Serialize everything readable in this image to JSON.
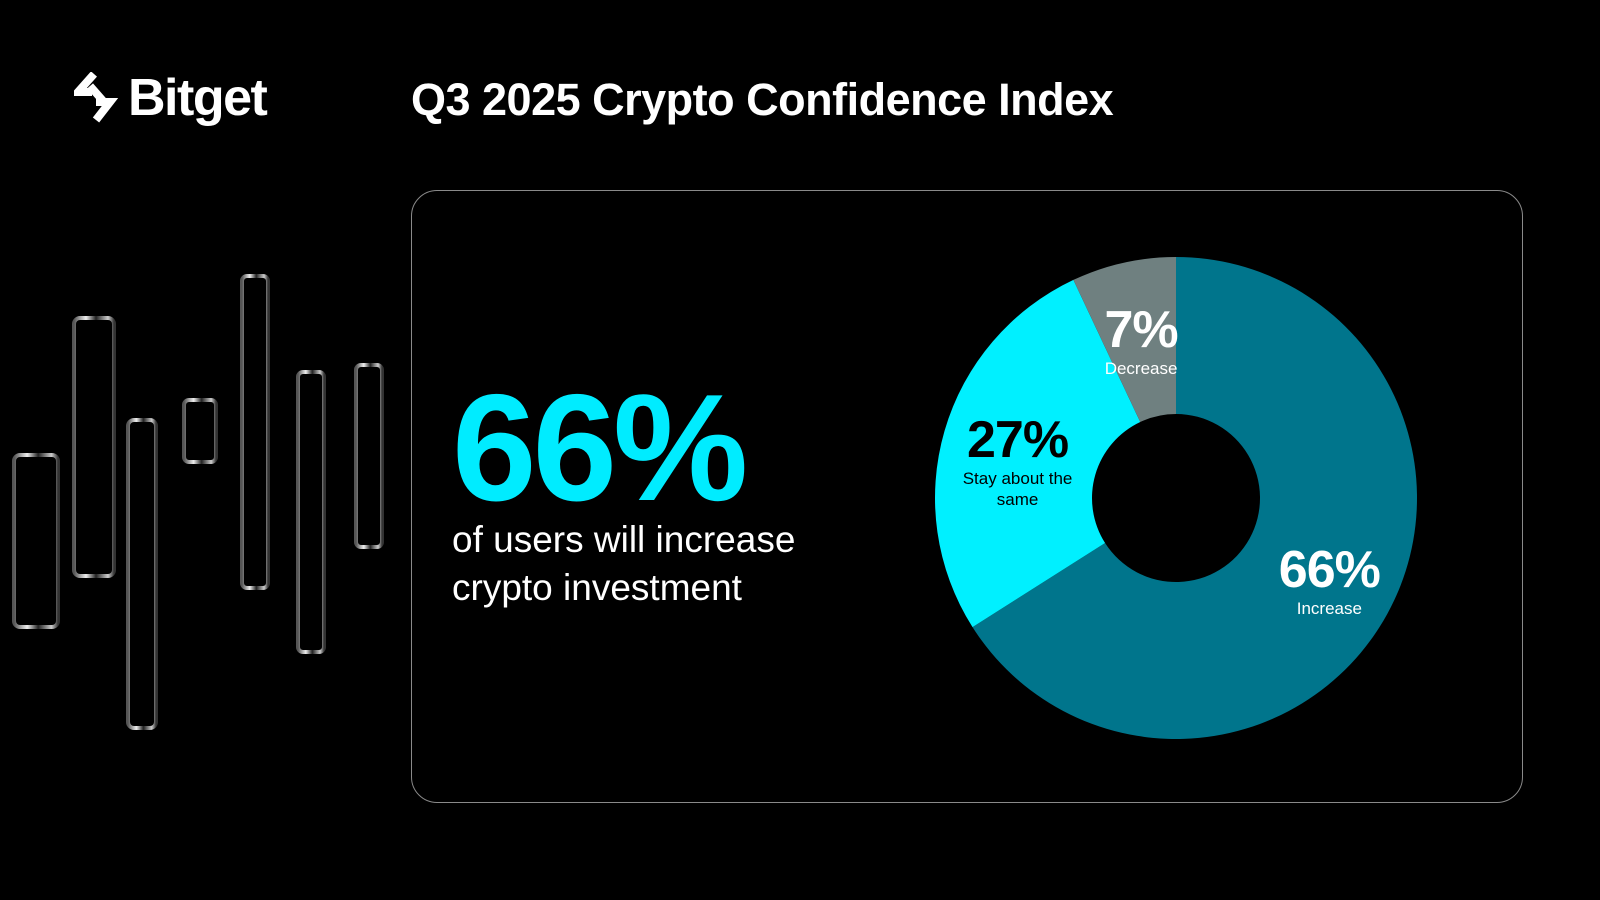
{
  "brand": {
    "name": "Bitget",
    "logo_icon": "bitget-arrows-icon"
  },
  "header": {
    "title": "Q3 2025 Crypto Confidence Index"
  },
  "highlight": {
    "value": "66%",
    "caption_line1": "of users will increase",
    "caption_line2": "crypto investment",
    "color": "#00ecff"
  },
  "chart_data": {
    "type": "pie",
    "variant": "donut",
    "start": "top",
    "direction": "clockwise",
    "slices": [
      {
        "label": "Increase",
        "value": 66,
        "display": "66%",
        "color": "#00758c",
        "text_color": "#ffffff"
      },
      {
        "label": "Stay about the same",
        "value": 27,
        "display": "27%",
        "color": "#00f0ff",
        "text_color": "#000000"
      },
      {
        "label": "Decrease",
        "value": 7,
        "display": "7%",
        "color": "#6f8080",
        "text_color": "#ffffff"
      }
    ]
  }
}
